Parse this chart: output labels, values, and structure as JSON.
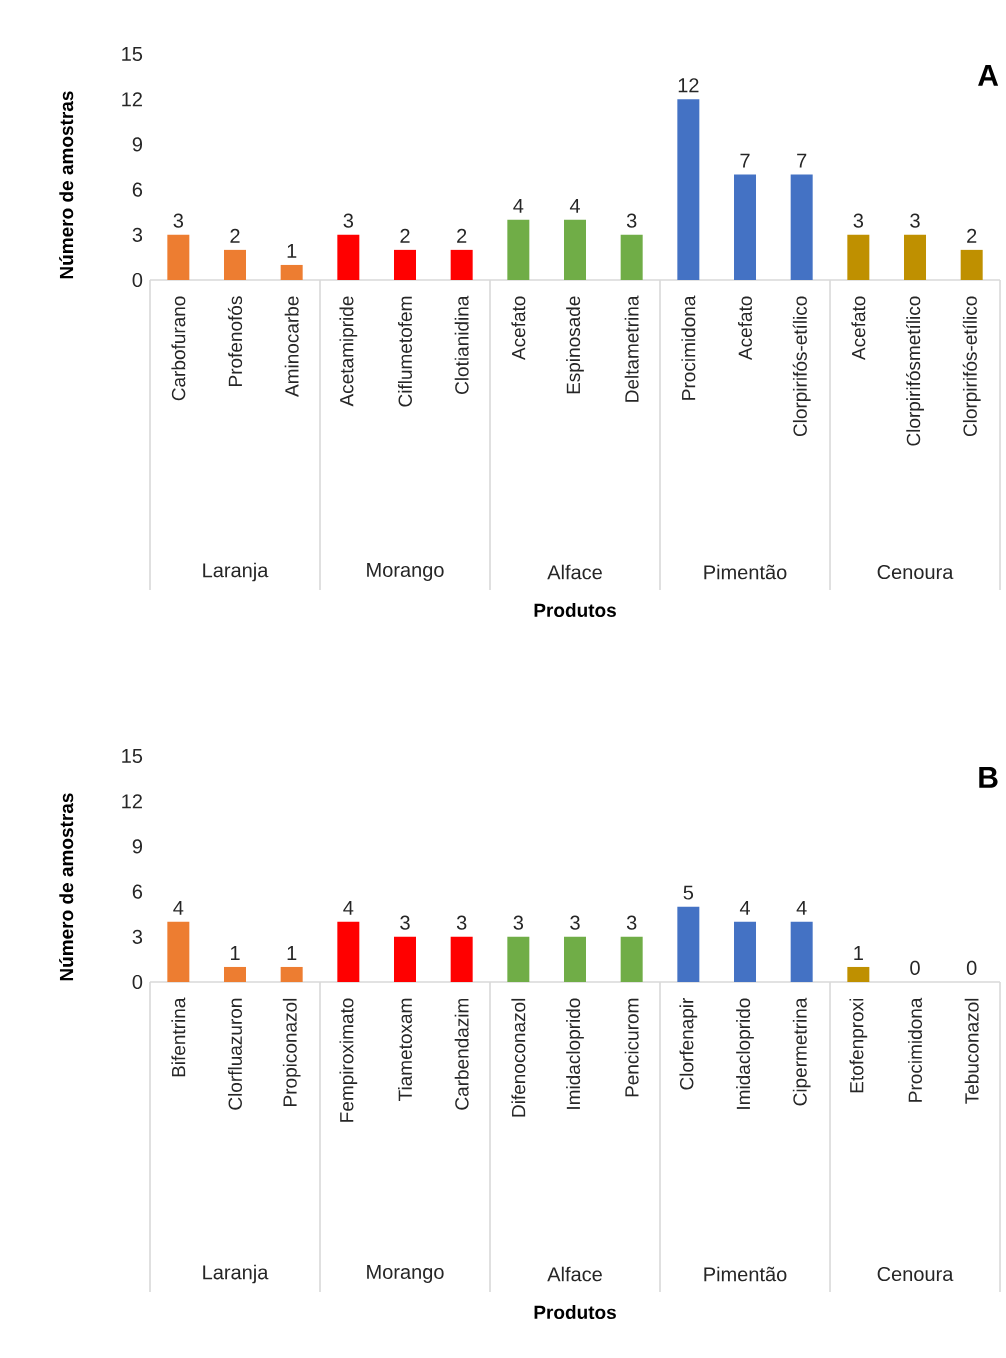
{
  "chart_data": [
    {
      "type": "bar",
      "title": "A",
      "annotations": [
        "Laranja",
        "Morango",
        "Alface",
        "Pimentão",
        "Cenoura"
      ],
      "xlabel": "Produtos",
      "ylabel": "Número de amostras",
      "ylim": [
        0,
        15
      ],
      "yticks": [
        0,
        3,
        6,
        9,
        12,
        15
      ],
      "data_labels": true,
      "categories": [
        "Carbofurano",
        "Profenofós",
        "Aminocarbe",
        "Acetamipride",
        "Ciflumetofem",
        "Clotianidina",
        "Acefato",
        "Espinosade",
        "Deltametrina",
        "Procimidona",
        "Acefato",
        "Clorpirifós-etílico",
        "Acefato",
        "Clorpirifósmetílico",
        "Clorpirifós-etílico"
      ],
      "series": [
        {
          "color": "#ed7d31",
          "values": [
            3,
            2,
            1,
            null,
            null,
            null,
            null,
            null,
            null,
            null,
            null,
            null,
            null,
            null,
            null
          ]
        },
        {
          "color": "#ff0000",
          "values": [
            null,
            null,
            null,
            3,
            2,
            2,
            null,
            null,
            null,
            null,
            null,
            null,
            null,
            null,
            null
          ]
        },
        {
          "color": "#70ad47",
          "values": [
            null,
            null,
            null,
            null,
            null,
            null,
            4,
            4,
            3,
            null,
            null,
            null,
            null,
            null,
            null
          ]
        },
        {
          "color": "#4472c4",
          "values": [
            null,
            null,
            null,
            null,
            null,
            null,
            null,
            null,
            null,
            12,
            7,
            7,
            null,
            null,
            null
          ]
        },
        {
          "color": "#bf9000",
          "values": [
            null,
            null,
            null,
            null,
            null,
            null,
            null,
            null,
            null,
            null,
            null,
            null,
            3,
            3,
            2
          ]
        }
      ]
    },
    {
      "type": "bar",
      "title": "B",
      "annotations": [
        "Laranja",
        "Morango",
        "Alface",
        "Pimentão",
        "Cenoura"
      ],
      "xlabel": "Produtos",
      "ylabel": "Número de amostras",
      "ylim": [
        0,
        15
      ],
      "yticks": [
        0,
        3,
        6,
        9,
        12,
        15
      ],
      "data_labels": true,
      "categories": [
        "Bifentrina",
        "Clorfluazuron",
        "Propiconazol",
        "Fempiroximato",
        "Tiametoxam",
        "Carbendazim",
        "Difenoconazol",
        "Imidacloprido",
        "Pencicurom",
        "Clorfenapir",
        "Imidacloprido",
        "Cipermetrina",
        "Etofenproxi",
        "Procimidona",
        "Tebuconazol"
      ],
      "series": [
        {
          "color": "#ed7d31",
          "values": [
            4,
            1,
            1,
            null,
            null,
            null,
            null,
            null,
            null,
            null,
            null,
            null,
            null,
            null,
            null
          ]
        },
        {
          "color": "#ff0000",
          "values": [
            null,
            null,
            null,
            4,
            3,
            3,
            null,
            null,
            null,
            null,
            null,
            null,
            null,
            null,
            null
          ]
        },
        {
          "color": "#70ad47",
          "values": [
            null,
            null,
            null,
            null,
            null,
            null,
            3,
            3,
            3,
            null,
            null,
            null,
            null,
            null,
            null
          ]
        },
        {
          "color": "#4472c4",
          "values": [
            null,
            null,
            null,
            null,
            null,
            null,
            null,
            null,
            null,
            5,
            4,
            4,
            null,
            null,
            null
          ]
        },
        {
          "color": "#bf9000",
          "values": [
            null,
            null,
            null,
            null,
            null,
            null,
            null,
            null,
            null,
            null,
            null,
            null,
            1,
            0,
            0
          ]
        }
      ]
    }
  ]
}
